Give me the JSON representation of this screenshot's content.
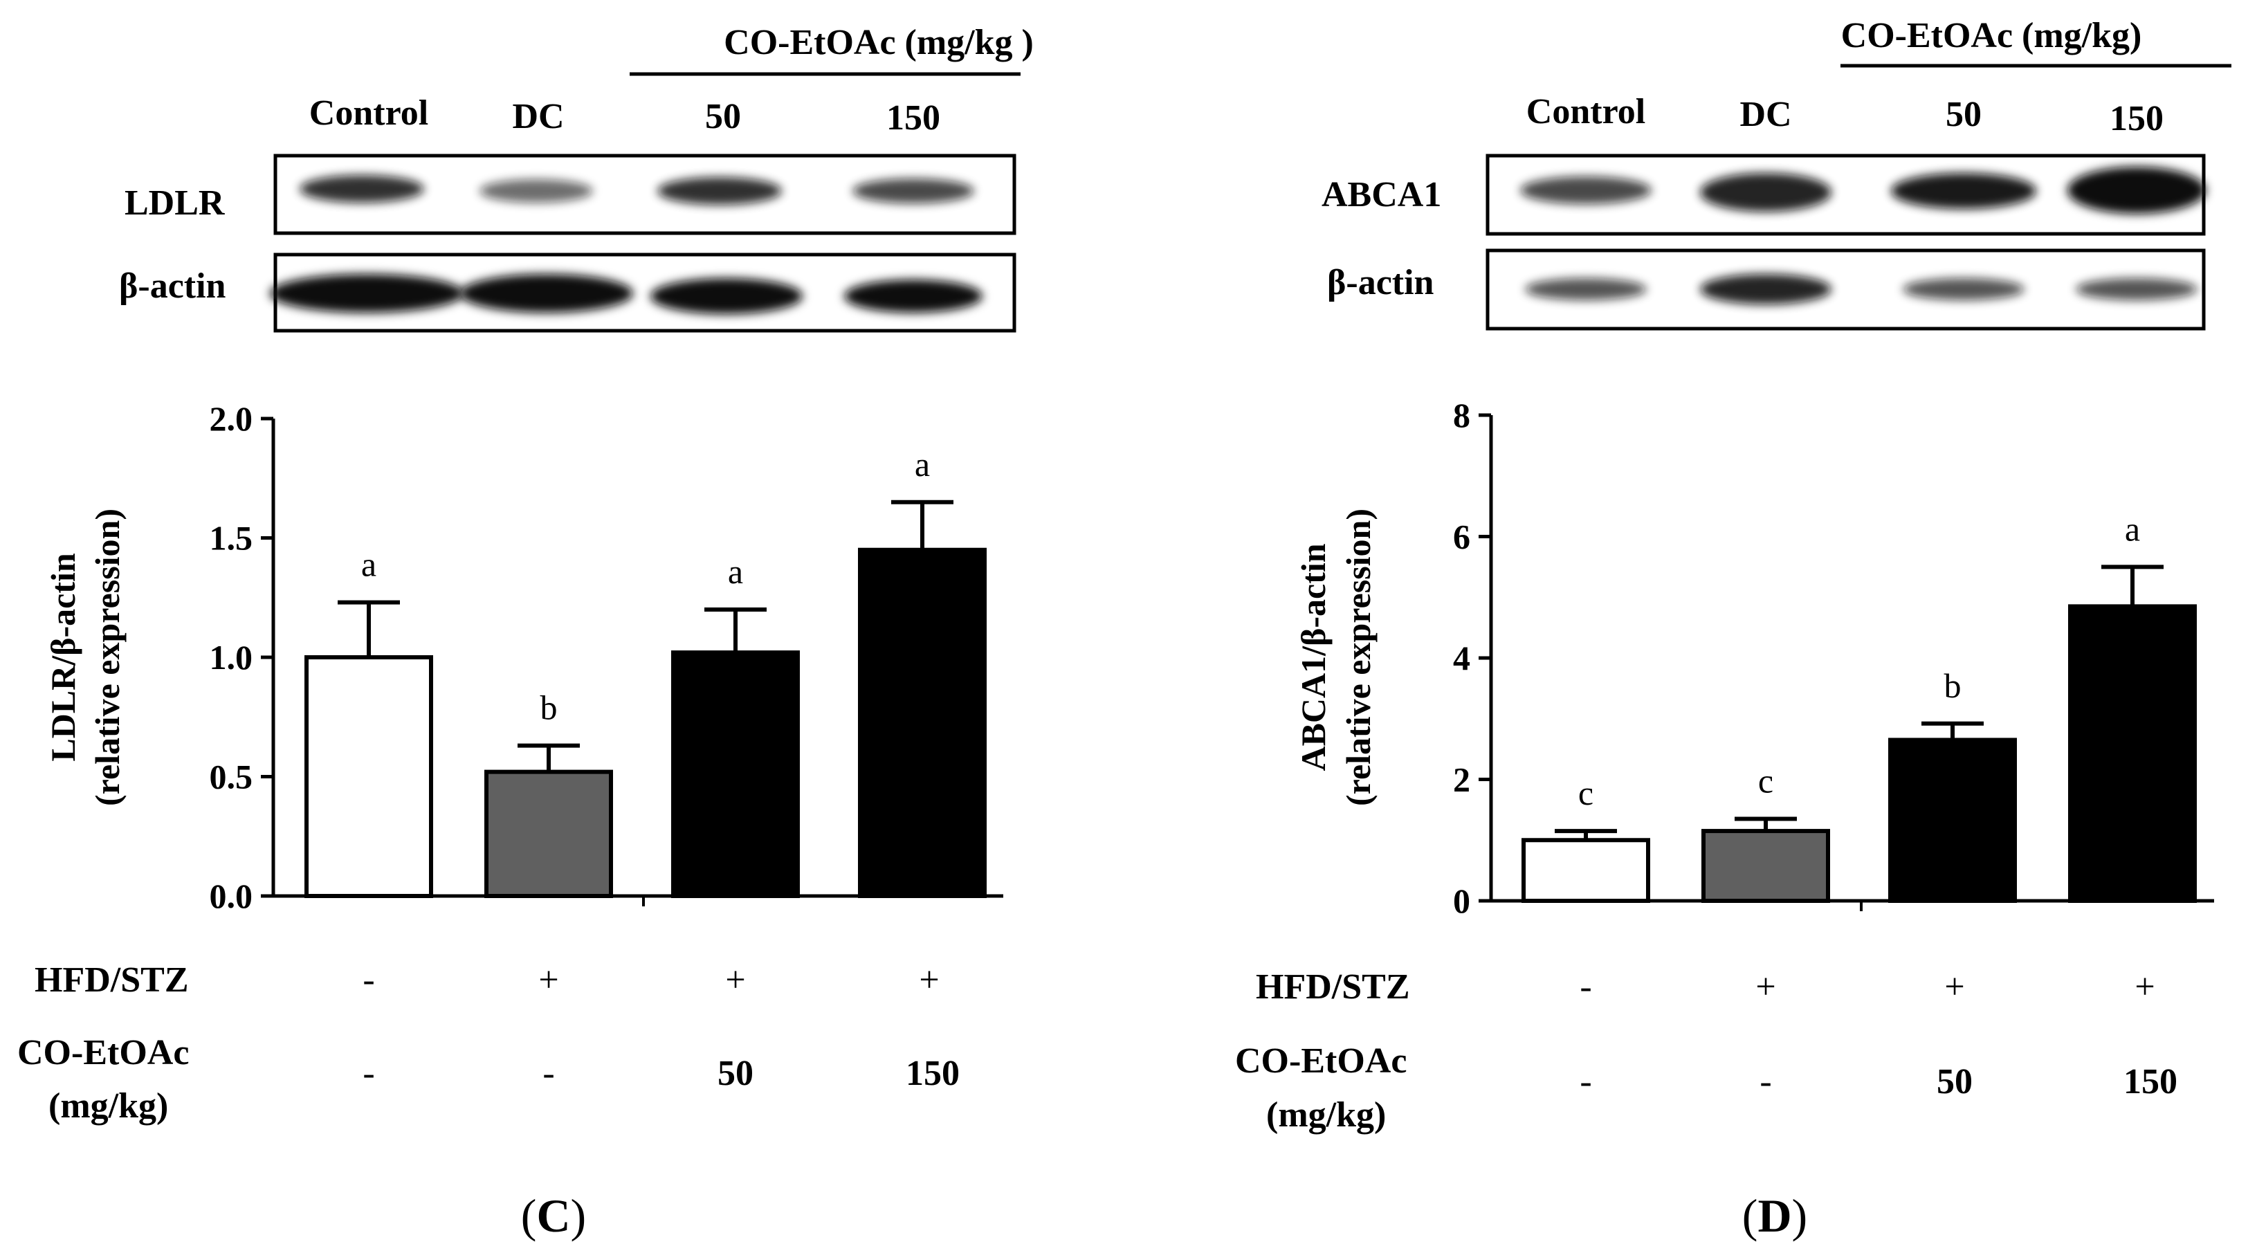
{
  "panels": [
    {
      "id": "C",
      "caption_open": "(",
      "caption_letter": "C",
      "caption_close": ")",
      "blot": {
        "header": "CO-EtOAc (mg/kg )",
        "lanes": [
          "Control",
          "DC",
          "50",
          "150"
        ],
        "target_label": "LDLR",
        "control_label": "β-actin",
        "target_band_intensity": [
          0.85,
          0.6,
          0.85,
          0.75
        ],
        "control_band_intensity": [
          1.0,
          1.0,
          1.0,
          1.0
        ]
      },
      "conditions": {
        "row1_label": "HFD/STZ",
        "row1": [
          "-",
          "+",
          "+",
          "+"
        ],
        "row2_label_line1": "CO-EtOAc",
        "row2_label_line2": "(mg/kg)",
        "row2": [
          "-",
          "-",
          "50",
          "150"
        ]
      }
    },
    {
      "id": "D",
      "caption_open": "(",
      "caption_letter": "D",
      "caption_close": ")",
      "blot": {
        "header": "CO-EtOAc (mg/kg)",
        "lanes": [
          "Control",
          "DC",
          "50",
          "150"
        ],
        "target_label": "ABCA1",
        "control_label": "β-actin",
        "target_band_intensity": [
          0.75,
          0.9,
          0.95,
          1.0
        ],
        "control_band_intensity": [
          0.7,
          0.9,
          0.7,
          0.7
        ]
      },
      "conditions": {
        "row1_label": "HFD/STZ",
        "row1": [
          "-",
          "+",
          "+",
          "+"
        ],
        "row2_label_line1": "CO-EtOAc",
        "row2_label_line2": "(mg/kg)",
        "row2": [
          "-",
          "-",
          "50",
          "150"
        ]
      }
    }
  ],
  "chart_data": [
    {
      "type": "bar",
      "panel": "C",
      "ylabel_line1": "LDLR/β-actin",
      "ylabel_line2": "(relative expression)",
      "categories": [
        "Control",
        "DC",
        "50",
        "150"
      ],
      "values": [
        1.0,
        0.52,
        1.02,
        1.45
      ],
      "errors": [
        0.23,
        0.11,
        0.18,
        0.2
      ],
      "letters": [
        "a",
        "b",
        "a",
        "a"
      ],
      "fill_colors": [
        "#ffffff",
        "#606060",
        "#000000",
        "#000000"
      ],
      "ylim": [
        0,
        2.0
      ],
      "yticks": [
        0.0,
        0.5,
        1.0,
        1.5,
        2.0
      ],
      "ytick_labels": [
        "0.0",
        "0.5",
        "1.0",
        "1.5",
        "2.0"
      ]
    },
    {
      "type": "bar",
      "panel": "D",
      "ylabel_line1": "ABCA1/β-actin",
      "ylabel_line2": "(relative expression)",
      "categories": [
        "Control",
        "DC",
        "50",
        "150"
      ],
      "values": [
        1.0,
        1.15,
        2.65,
        4.85
      ],
      "errors": [
        0.15,
        0.2,
        0.27,
        0.65
      ],
      "letters": [
        "c",
        "c",
        "b",
        "a"
      ],
      "fill_colors": [
        "#ffffff",
        "#606060",
        "#000000",
        "#000000"
      ],
      "ylim": [
        0,
        8
      ],
      "yticks": [
        0,
        2,
        4,
        6,
        8
      ],
      "ytick_labels": [
        "0",
        "2",
        "4",
        "6",
        "8"
      ]
    }
  ]
}
